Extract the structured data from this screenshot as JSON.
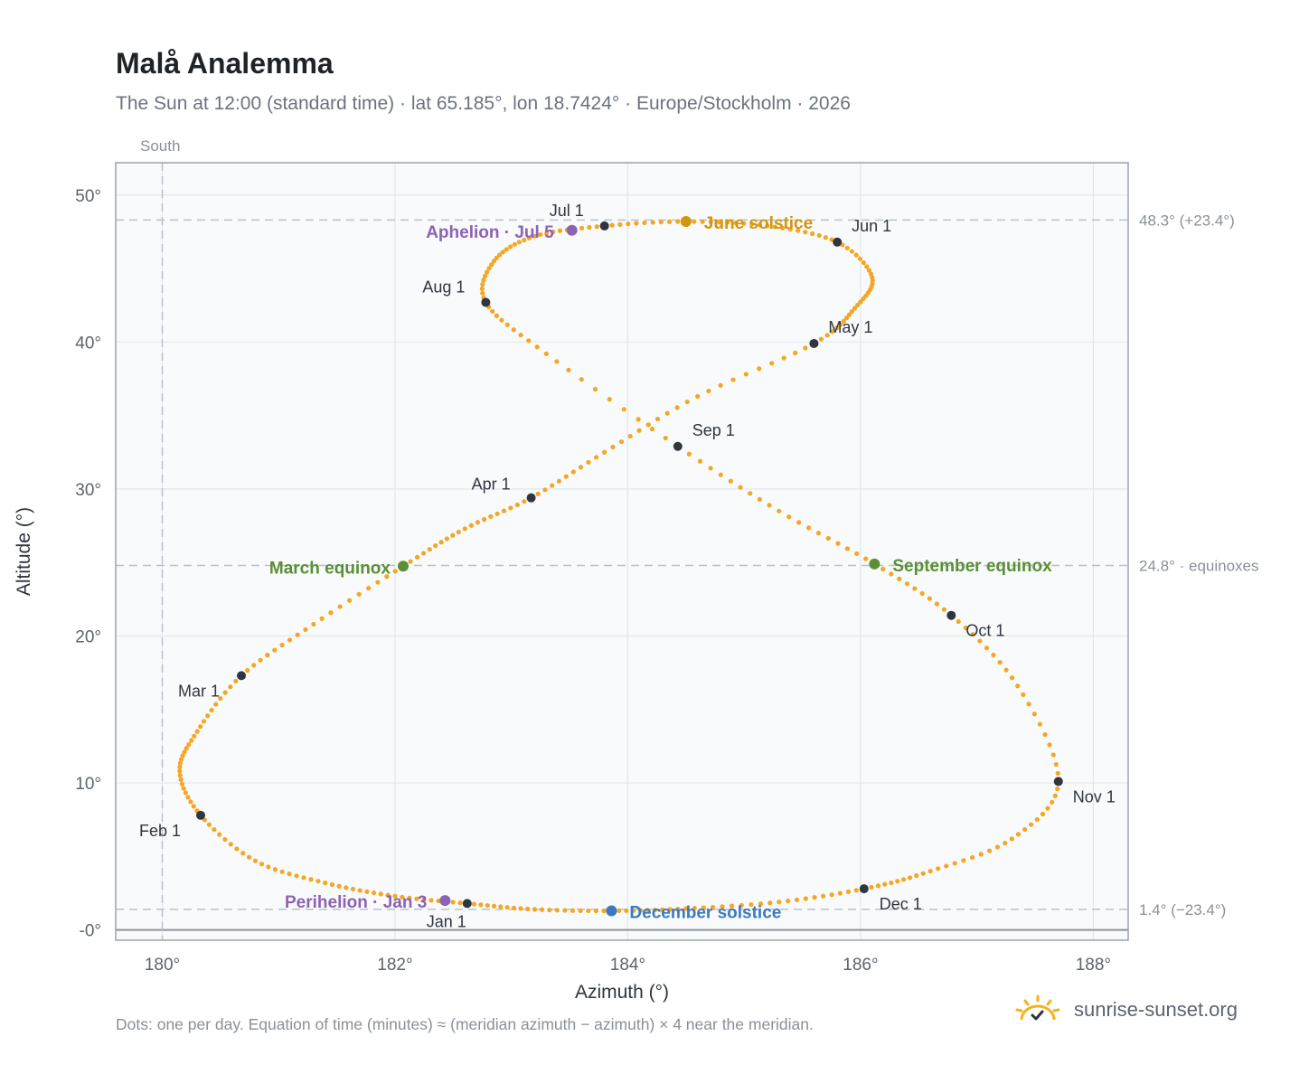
{
  "header": {
    "title": "Malå Analemma",
    "subtitle": "The Sun at 12:00 (standard time) · lat 65.185°, lon 18.7424° · Europe/Stockholm · 2026"
  },
  "footer": {
    "note": "Dots: one per day. Equation of time (minutes) ≈ (meridian azimuth − azimuth) × 4 near the meridian.",
    "brand": "sunrise-sunset.org"
  },
  "colors": {
    "path": "#f5a623",
    "month_dot": "#2f3640",
    "equinox": "#5a8f35",
    "june_solstice": "#d4950f",
    "december_solstice": "#3b7ac0",
    "apsis": "#8e62b4",
    "grid": "#e3e7ec",
    "plot_bg": "#f8fafc",
    "frame": "#9aa3ad",
    "ref_line": "#b8c2cc"
  },
  "chart_data": {
    "type": "scatter",
    "xlabel": "Azimuth (°)",
    "ylabel": "Altitude (°)",
    "xlim": [
      179.6,
      188.3
    ],
    "ylim": [
      -0.7,
      52.2
    ],
    "x_ticks": [
      {
        "value": 180,
        "label": "180°"
      },
      {
        "value": 182,
        "label": "182°"
      },
      {
        "value": 184,
        "label": "184°"
      },
      {
        "value": 186,
        "label": "186°"
      },
      {
        "value": 188,
        "label": "188°"
      }
    ],
    "y_ticks": [
      {
        "value": 0,
        "label": "-0°"
      },
      {
        "value": 10,
        "label": "10°"
      },
      {
        "value": 20,
        "label": "20°"
      },
      {
        "value": 30,
        "label": "30°"
      },
      {
        "value": 40,
        "label": "40°"
      },
      {
        "value": 50,
        "label": "50°"
      }
    ],
    "grid": true,
    "meridian": {
      "azimuth": 180,
      "label": "South"
    },
    "reference_lines": [
      {
        "altitude": 48.3,
        "label": "48.3° (+23.4°)"
      },
      {
        "altitude": 24.8,
        "label": "24.8° · equinoxes"
      },
      {
        "altitude": 1.4,
        "label": "1.4° (−23.4°)"
      }
    ],
    "path_anchors": [
      [
        182.62,
        1.8
      ],
      [
        182.0,
        2.3
      ],
      [
        181.4,
        3.2
      ],
      [
        180.8,
        4.7
      ],
      [
        180.33,
        7.8
      ],
      [
        180.15,
        10.8
      ],
      [
        180.3,
        13.5
      ],
      [
        180.68,
        17.3
      ],
      [
        181.3,
        20.8
      ],
      [
        182.07,
        24.75
      ],
      [
        182.6,
        27.3
      ],
      [
        183.17,
        29.4
      ],
      [
        183.8,
        32.5
      ],
      [
        184.6,
        36.3
      ],
      [
        185.6,
        39.9
      ],
      [
        185.95,
        42.3
      ],
      [
        186.1,
        44.4
      ],
      [
        185.8,
        46.8
      ],
      [
        185.2,
        47.9
      ],
      [
        184.5,
        48.2
      ],
      [
        183.8,
        47.9
      ],
      [
        183.2,
        47.2
      ],
      [
        182.85,
        45.5
      ],
      [
        182.78,
        42.7
      ],
      [
        183.3,
        39.2
      ],
      [
        184.43,
        32.9
      ],
      [
        185.3,
        28.5
      ],
      [
        186.12,
        24.9
      ],
      [
        186.78,
        21.4
      ],
      [
        187.35,
        16.6
      ],
      [
        187.7,
        10.1
      ],
      [
        187.3,
        6.2
      ],
      [
        186.6,
        4.0
      ],
      [
        186.03,
        2.8
      ],
      [
        185.3,
        1.9
      ],
      [
        184.5,
        1.45
      ],
      [
        183.86,
        1.3
      ],
      [
        183.2,
        1.4
      ],
      [
        182.62,
        1.8
      ]
    ],
    "month_markers": [
      {
        "label": "Jan 1",
        "az": 182.62,
        "alt": 1.8
      },
      {
        "label": "Feb 1",
        "az": 180.33,
        "alt": 7.8
      },
      {
        "label": "Mar 1",
        "az": 180.68,
        "alt": 17.3
      },
      {
        "label": "Apr 1",
        "az": 183.17,
        "alt": 29.4
      },
      {
        "label": "May 1",
        "az": 185.6,
        "alt": 39.9
      },
      {
        "label": "Jun 1",
        "az": 185.8,
        "alt": 46.8
      },
      {
        "label": "Jul 1",
        "az": 183.8,
        "alt": 47.9
      },
      {
        "label": "Aug 1",
        "az": 182.78,
        "alt": 42.7
      },
      {
        "label": "Sep 1",
        "az": 184.43,
        "alt": 32.9
      },
      {
        "label": "Oct 1",
        "az": 186.78,
        "alt": 21.4
      },
      {
        "label": "Nov 1",
        "az": 187.7,
        "alt": 10.1
      },
      {
        "label": "Dec 1",
        "az": 186.03,
        "alt": 2.8
      }
    ],
    "events": [
      {
        "label": "March equinox",
        "az": 182.07,
        "alt": 24.75,
        "kind": "equinox"
      },
      {
        "label": "September equinox",
        "az": 186.12,
        "alt": 24.9,
        "kind": "equinox"
      },
      {
        "label": "June solstice",
        "az": 184.5,
        "alt": 48.2,
        "kind": "june_solstice"
      },
      {
        "label": "December solstice",
        "az": 183.86,
        "alt": 1.3,
        "kind": "december_solstice"
      },
      {
        "label": "Aphelion · Jul 5",
        "az": 183.52,
        "alt": 47.6,
        "kind": "apsis"
      },
      {
        "label": "Perihelion · Jan 3",
        "az": 182.43,
        "alt": 2.0,
        "kind": "apsis"
      }
    ]
  }
}
